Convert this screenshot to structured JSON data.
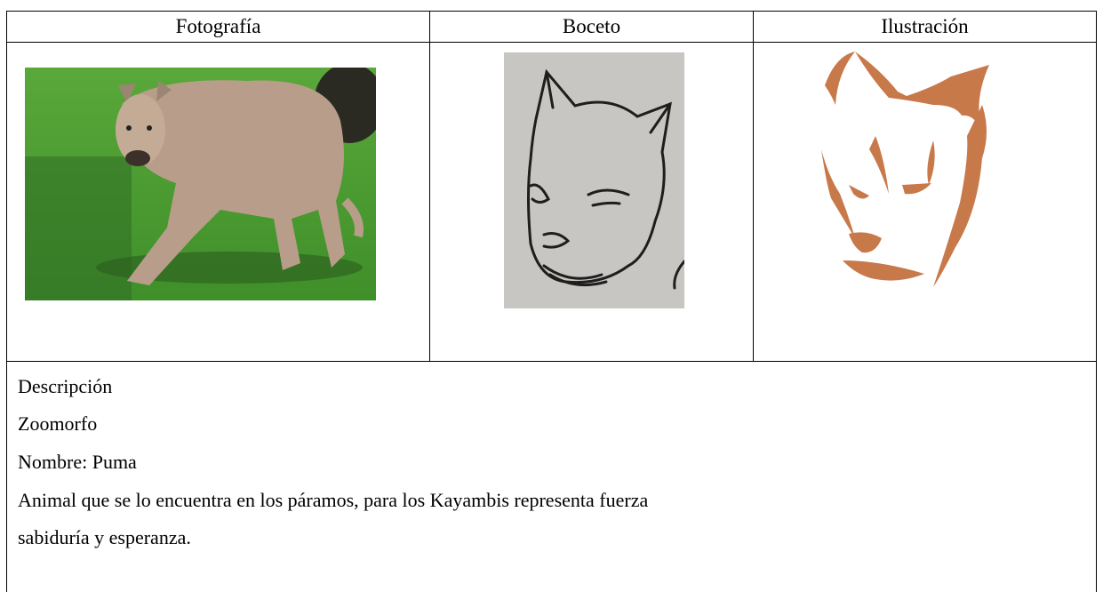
{
  "table": {
    "header": [
      "Fotografía",
      "Boceto",
      "Ilustración"
    ],
    "description": {
      "heading": "Descripción",
      "category": "Zoomorfo",
      "name": "Nombre: Puma",
      "text": "Animal que se lo encuentra en los páramos, para los Kayambis representa fuerza sabiduría y esperanza."
    }
  }
}
